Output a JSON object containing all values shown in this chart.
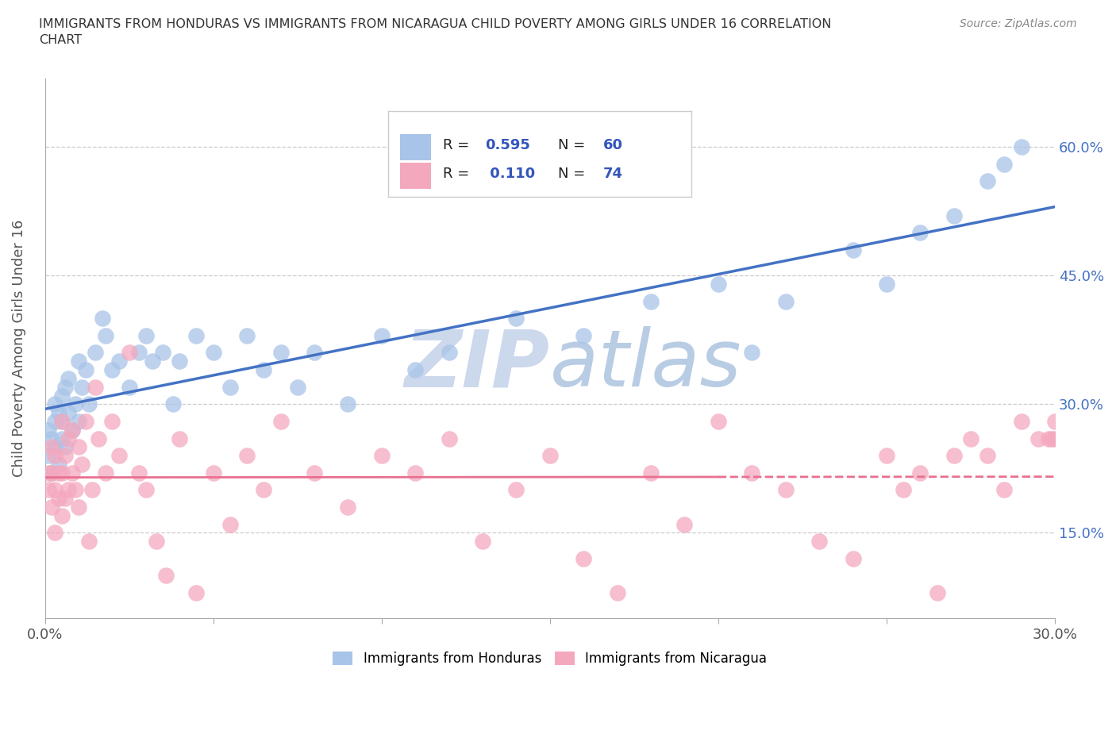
{
  "title": "IMMIGRANTS FROM HONDURAS VS IMMIGRANTS FROM NICARAGUA CHILD POVERTY AMONG GIRLS UNDER 16 CORRELATION\nCHART",
  "source": "Source: ZipAtlas.com",
  "ylabel": "Child Poverty Among Girls Under 16",
  "xlim": [
    0.0,
    0.3
  ],
  "ylim": [
    0.05,
    0.68
  ],
  "xticks": [
    0.0,
    0.05,
    0.1,
    0.15,
    0.2,
    0.25,
    0.3
  ],
  "yticks": [
    0.15,
    0.3,
    0.45,
    0.6
  ],
  "ytick_labels": [
    "15.0%",
    "30.0%",
    "45.0%",
    "60.0%"
  ],
  "honduras_color": "#a8c4e8",
  "nicaragua_color": "#f4a8be",
  "regression_blue_color": "#4472c4",
  "regression_pink_color": "#e87090",
  "watermark": "ZIPatlas",
  "watermark_color": "#d0e0f0",
  "legend_text_color": "#3355bb",
  "honduras_R": "0.595",
  "honduras_N": "60",
  "nicaragua_R": "0.110",
  "nicaragua_N": "74",
  "honduras_x": [
    0.001,
    0.001,
    0.002,
    0.002,
    0.003,
    0.003,
    0.003,
    0.004,
    0.004,
    0.005,
    0.005,
    0.005,
    0.006,
    0.006,
    0.007,
    0.007,
    0.008,
    0.009,
    0.01,
    0.01,
    0.011,
    0.012,
    0.013,
    0.015,
    0.017,
    0.018,
    0.02,
    0.022,
    0.025,
    0.028,
    0.03,
    0.032,
    0.035,
    0.038,
    0.04,
    0.045,
    0.05,
    0.055,
    0.06,
    0.065,
    0.07,
    0.075,
    0.08,
    0.09,
    0.1,
    0.11,
    0.12,
    0.14,
    0.16,
    0.18,
    0.2,
    0.21,
    0.22,
    0.24,
    0.25,
    0.26,
    0.27,
    0.28,
    0.285,
    0.29
  ],
  "honduras_y": [
    0.24,
    0.27,
    0.22,
    0.26,
    0.25,
    0.28,
    0.3,
    0.23,
    0.29,
    0.26,
    0.31,
    0.28,
    0.25,
    0.32,
    0.29,
    0.33,
    0.27,
    0.3,
    0.28,
    0.35,
    0.32,
    0.34,
    0.3,
    0.36,
    0.4,
    0.38,
    0.34,
    0.35,
    0.32,
    0.36,
    0.38,
    0.35,
    0.36,
    0.3,
    0.35,
    0.38,
    0.36,
    0.32,
    0.38,
    0.34,
    0.36,
    0.32,
    0.36,
    0.3,
    0.38,
    0.34,
    0.36,
    0.4,
    0.38,
    0.42,
    0.44,
    0.36,
    0.42,
    0.48,
    0.44,
    0.5,
    0.52,
    0.56,
    0.58,
    0.6
  ],
  "nicaragua_x": [
    0.001,
    0.001,
    0.002,
    0.002,
    0.002,
    0.003,
    0.003,
    0.003,
    0.004,
    0.004,
    0.005,
    0.005,
    0.005,
    0.006,
    0.006,
    0.007,
    0.007,
    0.008,
    0.008,
    0.009,
    0.01,
    0.01,
    0.011,
    0.012,
    0.013,
    0.014,
    0.015,
    0.016,
    0.018,
    0.02,
    0.022,
    0.025,
    0.028,
    0.03,
    0.033,
    0.036,
    0.04,
    0.045,
    0.05,
    0.055,
    0.06,
    0.065,
    0.07,
    0.08,
    0.09,
    0.1,
    0.11,
    0.12,
    0.13,
    0.14,
    0.15,
    0.16,
    0.17,
    0.18,
    0.19,
    0.2,
    0.21,
    0.22,
    0.23,
    0.24,
    0.25,
    0.255,
    0.26,
    0.265,
    0.27,
    0.275,
    0.28,
    0.285,
    0.29,
    0.295,
    0.298,
    0.299,
    0.3,
    0.3
  ],
  "nicaragua_y": [
    0.22,
    0.2,
    0.18,
    0.25,
    0.22,
    0.2,
    0.15,
    0.24,
    0.22,
    0.19,
    0.28,
    0.22,
    0.17,
    0.24,
    0.19,
    0.26,
    0.2,
    0.22,
    0.27,
    0.2,
    0.18,
    0.25,
    0.23,
    0.28,
    0.14,
    0.2,
    0.32,
    0.26,
    0.22,
    0.28,
    0.24,
    0.36,
    0.22,
    0.2,
    0.14,
    0.1,
    0.26,
    0.08,
    0.22,
    0.16,
    0.24,
    0.2,
    0.28,
    0.22,
    0.18,
    0.24,
    0.22,
    0.26,
    0.14,
    0.2,
    0.24,
    0.12,
    0.08,
    0.22,
    0.16,
    0.28,
    0.22,
    0.2,
    0.14,
    0.12,
    0.24,
    0.2,
    0.22,
    0.08,
    0.24,
    0.26,
    0.24,
    0.2,
    0.28,
    0.26,
    0.26,
    0.26,
    0.28,
    0.26
  ]
}
